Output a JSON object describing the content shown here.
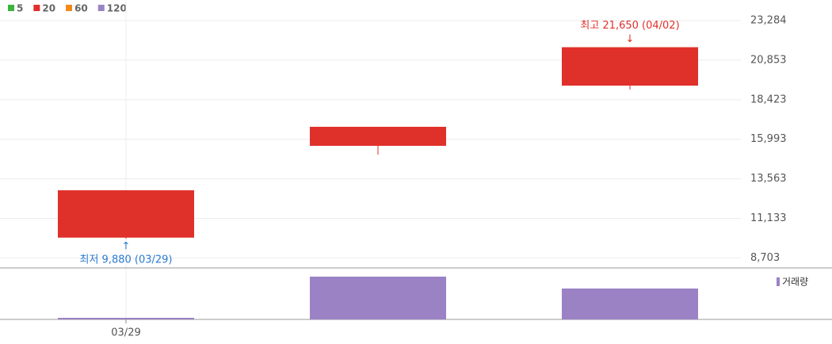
{
  "chart_data": {
    "type": "candlestick",
    "legend": [
      {
        "name": "5",
        "color": "#3cb43c"
      },
      {
        "name": "20",
        "color": "#e0302a"
      },
      {
        "name": "60",
        "color": "#f08a1c"
      },
      {
        "name": "120",
        "color": "#9b82c4"
      }
    ],
    "categories": [
      "03/29",
      null,
      null
    ],
    "open": [
      9950,
      15590,
      19290
    ],
    "high": [
      12860,
      16760,
      21650
    ],
    "low": [
      9880,
      15050,
      19050
    ],
    "close": [
      12860,
      16760,
      21650
    ],
    "color": "#e0302a",
    "ylim": [
      8090,
      24550
    ],
    "yticks": [
      {
        "value": 23284,
        "label": "23,284"
      },
      {
        "value": 20853,
        "label": "20,853"
      },
      {
        "value": 18423,
        "label": "18,423"
      },
      {
        "value": 15993,
        "label": "15,993"
      },
      {
        "value": 13563,
        "label": "13,563"
      },
      {
        "value": 11133,
        "label": "11,133"
      },
      {
        "value": 8703,
        "label": "8,703"
      }
    ],
    "annotations": [
      {
        "label": "최고 21,650 (04/02)",
        "value": 21650,
        "color": "#e0302a"
      },
      {
        "label": "최저 9,880 (03/29)",
        "value": 9880,
        "color": "#2a7ad0"
      }
    ],
    "volume": {
      "name": "거래량",
      "color": "#9b82c4",
      "values": [
        2,
        54,
        39
      ]
    }
  }
}
